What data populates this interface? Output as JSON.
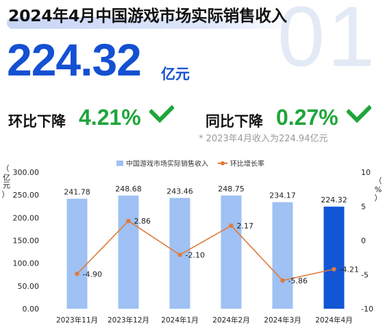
{
  "header": {
    "title": "2024年4月中国游戏市场实际销售收入",
    "bg_number": "01",
    "headline_value": "224.32",
    "headline_unit": "亿元"
  },
  "stats": {
    "mom_label": "环比下降",
    "mom_value": "4.21%",
    "yoy_label": "同比下降",
    "yoy_value": "0.27%",
    "note": "* 2023年4月收入为224.94亿元",
    "value_color": "#1ea53a"
  },
  "chart_data": {
    "type": "bar",
    "categories": [
      "2023年11月",
      "2023年12月",
      "2024年1月",
      "2024年2月",
      "2024年3月",
      "2024年4月"
    ],
    "series": [
      {
        "name": "中国游戏市场实际销售收入",
        "type": "bar",
        "values": [
          241.78,
          248.68,
          243.46,
          248.75,
          234.17,
          224.32
        ],
        "labels": [
          "241.78",
          "248.68",
          "243.46",
          "248.75",
          "234.17",
          "224.32"
        ],
        "color": "#9fc1f3",
        "highlight_color": "#1256d6"
      },
      {
        "name": "环比增长率",
        "type": "line",
        "axis": "right",
        "values": [
          -4.9,
          2.86,
          -2.1,
          2.17,
          -5.86,
          -4.21
        ],
        "labels": [
          "-4.90",
          "2.86",
          "-2.10",
          "2.17",
          "-5.86",
          "-4.21"
        ],
        "color": "#e07b39"
      }
    ],
    "ylabel": "亿元",
    "y2label": "%",
    "ylim": [
      0,
      300
    ],
    "y2lim": [
      -10,
      10
    ],
    "yticks": [
      "0.00",
      "50.00",
      "100.00",
      "150.00",
      "200.00",
      "250.00",
      "300.00"
    ],
    "y2ticks": [
      "-10",
      "-5",
      "0",
      "5",
      "10"
    ],
    "grid": false,
    "legend": "top-center"
  }
}
